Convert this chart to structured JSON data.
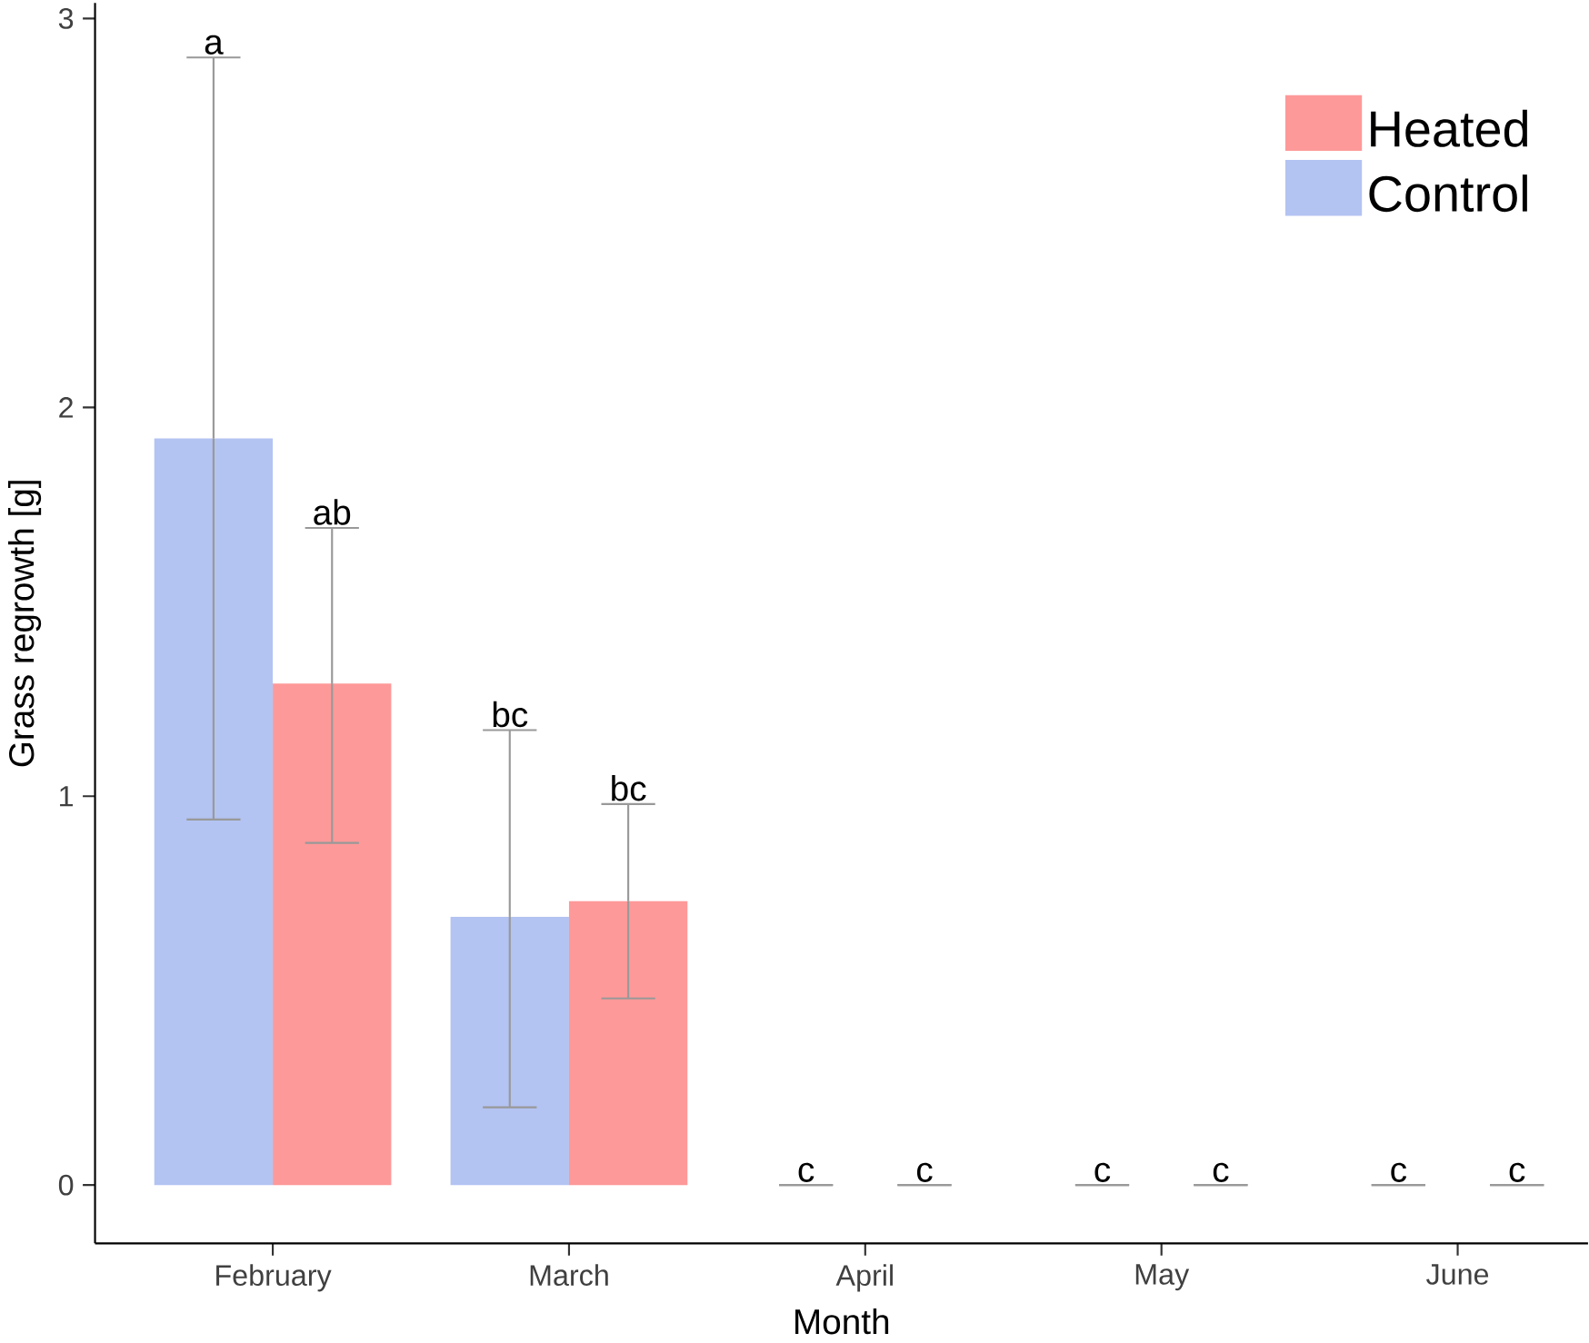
{
  "chart_data": {
    "type": "bar",
    "xlabel": "Month",
    "ylabel": "Grass regrowth [g]",
    "categories": [
      "February",
      "March",
      "April",
      "May",
      "June"
    ],
    "series": [
      {
        "name": "Control",
        "color": "#b3c3f2",
        "values": [
          1.92,
          0.69,
          0,
          0,
          0
        ],
        "errors": [
          [
            0.94,
            2.9
          ],
          [
            0.2,
            1.17
          ],
          [
            0,
            0
          ],
          [
            0,
            0
          ],
          [
            0,
            0
          ]
        ]
      },
      {
        "name": "Heated",
        "color": "#fe9999",
        "values": [
          1.29,
          0.73,
          0,
          0,
          0
        ],
        "errors": [
          [
            0.88,
            1.69
          ],
          [
            0.48,
            0.98
          ],
          [
            0,
            0
          ],
          [
            0,
            0
          ],
          [
            0,
            0
          ]
        ]
      }
    ],
    "ylim": [
      -0.15,
      3.04
    ],
    "yticks": [
      0,
      1,
      2,
      3
    ],
    "legend": "top right",
    "grid": false,
    "annotations": [
      "a",
      "ab",
      "bc",
      "bc",
      "c",
      "c",
      "c",
      "c",
      "c",
      "c"
    ]
  }
}
